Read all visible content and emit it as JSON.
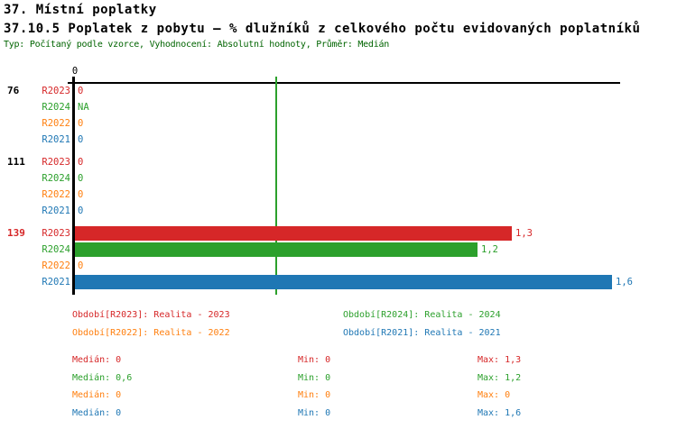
{
  "header": {
    "title1": "37. Místní poplatky",
    "title2": "37.10.5 Poplatek z pobytu – % dlužníků z celkového počtu evidovaných poplatníků",
    "meta": "Typ: Počítaný podle vzorce, Vyhodnocení: Absolutní hodnoty, Průměr: Medián"
  },
  "colors": {
    "R2023": "#d62728",
    "R2024": "#2ca02c",
    "R2022": "#ff7f0e",
    "R2021": "#1f77b4",
    "meta_text": "#006400",
    "axis": "#000000",
    "median_line": "#2ca02c",
    "group_139": "#d62728",
    "group_default": "#000000"
  },
  "chart_data": {
    "type": "bar",
    "orientation": "horizontal",
    "title": "",
    "xlabel": "",
    "ylabel": "",
    "x_axis": {
      "tick_labels": [
        "0"
      ],
      "tick_values": [
        0
      ],
      "range": [
        0,
        1.62
      ]
    },
    "median_line_value": 0.6,
    "series_order": [
      "R2023",
      "R2024",
      "R2022",
      "R2021"
    ],
    "groups": [
      {
        "label": "76",
        "label_color": "#000000",
        "rows": [
          {
            "series": "R2023",
            "value": 0,
            "value_label": "0"
          },
          {
            "series": "R2024",
            "value": null,
            "value_label": "NA"
          },
          {
            "series": "R2022",
            "value": 0,
            "value_label": "0"
          },
          {
            "series": "R2021",
            "value": 0,
            "value_label": "0"
          }
        ]
      },
      {
        "label": "111",
        "label_color": "#000000",
        "rows": [
          {
            "series": "R2023",
            "value": 0,
            "value_label": "0"
          },
          {
            "series": "R2024",
            "value": 0,
            "value_label": "0"
          },
          {
            "series": "R2022",
            "value": 0,
            "value_label": "0"
          },
          {
            "series": "R2021",
            "value": 0,
            "value_label": "0"
          }
        ]
      },
      {
        "label": "139",
        "label_color": "#d62728",
        "rows": [
          {
            "series": "R2023",
            "value": 1.3,
            "value_label": "1,3"
          },
          {
            "series": "R2024",
            "value": 1.2,
            "value_label": "1,2"
          },
          {
            "series": "R2022",
            "value": 0,
            "value_label": "0"
          },
          {
            "series": "R2021",
            "value": 1.6,
            "value_label": "1,6"
          }
        ]
      }
    ]
  },
  "legend": {
    "items": [
      {
        "series": "R2023",
        "label": "Období[R2023]: Realita - 2023"
      },
      {
        "series": "R2024",
        "label": "Období[R2024]: Realita - 2024"
      },
      {
        "series": "R2022",
        "label": "Období[R2022]: Realita - 2022"
      },
      {
        "series": "R2021",
        "label": "Období[R2021]: Realita - 2021"
      }
    ]
  },
  "stats": {
    "rows": [
      {
        "series": "R2023",
        "median": "Medián: 0",
        "min": "Min: 0",
        "max": "Max: 1,3"
      },
      {
        "series": "R2024",
        "median": "Medián: 0,6",
        "min": "Min: 0",
        "max": "Max: 1,2"
      },
      {
        "series": "R2022",
        "median": "Medián: 0",
        "min": "Min: 0",
        "max": "Max: 0"
      },
      {
        "series": "R2021",
        "median": "Medián: 0",
        "min": "Min: 0",
        "max": "Max: 1,6"
      }
    ]
  }
}
